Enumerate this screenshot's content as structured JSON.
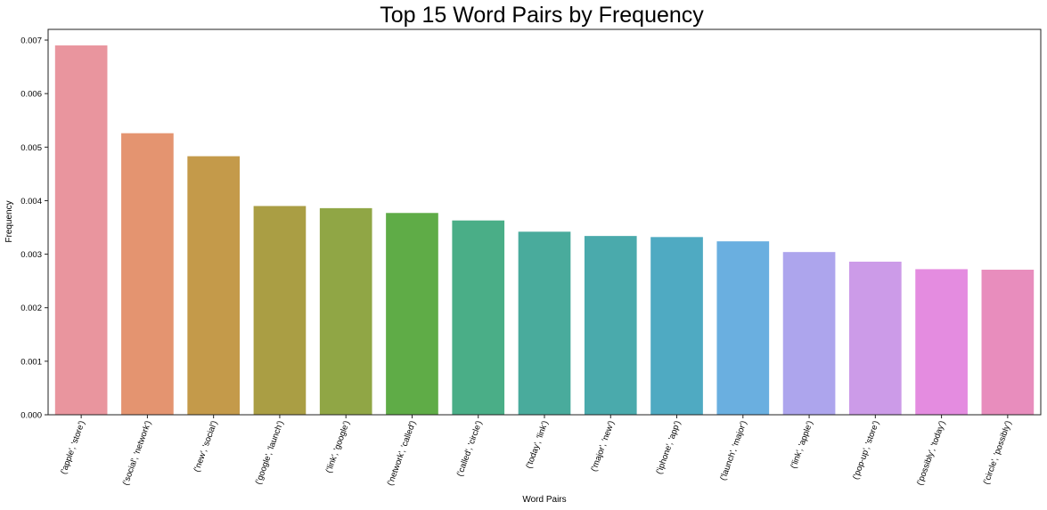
{
  "chart_data": {
    "type": "bar",
    "title": "Top 15 Word Pairs by Frequency",
    "xlabel": "Word Pairs",
    "ylabel": "Frequency",
    "ylim": [
      0,
      0.0072
    ],
    "yticks": [
      "0.000",
      "0.001",
      "0.002",
      "0.003",
      "0.004",
      "0.005",
      "0.006",
      "0.007"
    ],
    "grid": false,
    "categories": [
      "('apple', 'store')",
      "('social', 'network')",
      "('new', 'social')",
      "('google', 'launch')",
      "('link', 'google')",
      "('network', 'called')",
      "('called', 'circle')",
      "('today', 'link')",
      "('major', 'new')",
      "('iphone', 'app')",
      "('launch', 'major')",
      "('link', 'apple')",
      "('pop-up', 'store')",
      "('possibly', 'today')",
      "('circle', 'possibly')"
    ],
    "values": [
      0.0069,
      0.00526,
      0.00483,
      0.0039,
      0.00386,
      0.00377,
      0.00363,
      0.00342,
      0.00334,
      0.00332,
      0.00324,
      0.00304,
      0.00286,
      0.00272,
      0.00271
    ],
    "colors": [
      "#e9959e",
      "#e49470",
      "#c49a4a",
      "#aa9e44",
      "#90a645",
      "#5fac47",
      "#4aae87",
      "#49ab9c",
      "#4aaaac",
      "#4faac2",
      "#6aafe0",
      "#ada5ed",
      "#cc9be8",
      "#e48ce0",
      "#e88dbd"
    ]
  }
}
